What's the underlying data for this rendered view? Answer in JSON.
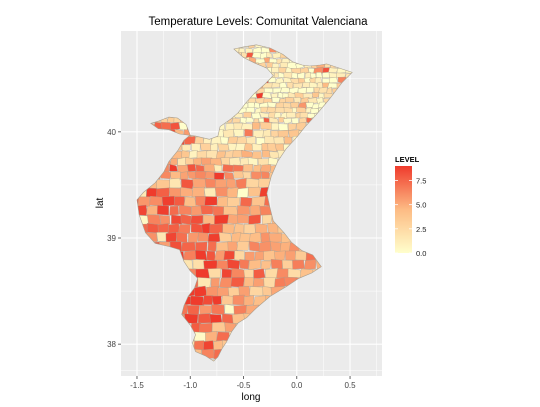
{
  "chart_data": {
    "type": "choropleth",
    "title": "Temperature Levels: Comunitat Valenciana",
    "xlabel": "long",
    "ylabel": "lat",
    "x_ticks": [
      -1.5,
      -1.0,
      -0.5,
      0.0,
      0.5
    ],
    "x_tick_labels": [
      "-1.5",
      "-1.0",
      "-0.5",
      "0.0",
      "0.5"
    ],
    "y_ticks": [
      38,
      39,
      40
    ],
    "y_tick_labels": [
      "38",
      "39",
      "40"
    ],
    "xlim": [
      -1.65,
      0.8
    ],
    "ylim": [
      37.7,
      40.95
    ],
    "grid": true,
    "legend": {
      "title": "LEVEL",
      "placement": "right",
      "range": [
        0,
        9
      ],
      "breaks": [
        0,
        2.5,
        5,
        7.5
      ],
      "break_labels": [
        "0.0",
        "2.5",
        "5.0",
        "7.5"
      ],
      "low_color": "#ffffcc",
      "mid_color": "#fdbb84",
      "high_color": "#ef3b2c"
    }
  },
  "colors": {
    "panel_background": "#ebebeb",
    "gridline": "#ffffff",
    "region_border": "#a89e8e"
  }
}
